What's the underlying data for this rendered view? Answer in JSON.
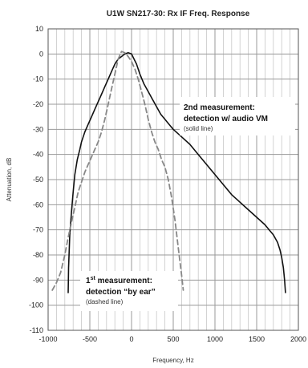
{
  "chart_data": {
    "type": "line",
    "title": "U1W SN217-30: Rx IF Freq. Response",
    "xlabel": "Frequency, Hz",
    "ylabel": "Attenuation, dB",
    "xlim": [
      -1000,
      2000
    ],
    "ylim": [
      -110,
      10
    ],
    "x_ticks": [
      -1000,
      -500,
      0,
      500,
      1000,
      1500,
      2000
    ],
    "y_ticks": [
      10,
      0,
      -10,
      -20,
      -30,
      -40,
      -50,
      -60,
      -70,
      -80,
      -90,
      -100,
      -110
    ],
    "grid": true,
    "series": [
      {
        "style": "solid",
        "color": "#111111",
        "x": [
          -760,
          -755,
          -740,
          -720,
          -700,
          -680,
          -650,
          -620,
          -600,
          -560,
          -520,
          -480,
          -440,
          -400,
          -360,
          -320,
          -280,
          -240,
          -200,
          -160,
          -120,
          -80,
          -40,
          0,
          30,
          60,
          100,
          150,
          200,
          250,
          300,
          350,
          400,
          450,
          500,
          600,
          700,
          800,
          900,
          1000,
          1100,
          1200,
          1300,
          1400,
          1500,
          1600,
          1650,
          1700,
          1750,
          1780,
          1800,
          1820,
          1835,
          1845
        ],
        "y": [
          -95,
          -85,
          -72,
          -63,
          -55,
          -48,
          -42,
          -38,
          -35,
          -31,
          -28,
          -25,
          -22,
          -19,
          -16,
          -13,
          -10,
          -7,
          -4,
          -2,
          -1,
          0,
          0.5,
          0,
          -2,
          -4,
          -8,
          -12,
          -15,
          -18,
          -21,
          -24,
          -26,
          -28,
          -30,
          -33,
          -36,
          -40,
          -44,
          -48,
          -52,
          -56,
          -59,
          -62,
          -65,
          -68,
          -70,
          -72,
          -75,
          -78,
          -81,
          -85,
          -90,
          -95
        ]
      },
      {
        "style": "dashed",
        "color": "#888888",
        "x": [
          -950,
          -900,
          -850,
          -800,
          -760,
          -720,
          -680,
          -640,
          -600,
          -560,
          -520,
          -480,
          -440,
          -400,
          -360,
          -320,
          -280,
          -240,
          -200,
          -160,
          -120,
          -80,
          -40,
          0,
          40,
          80,
          120,
          160,
          200,
          240,
          280,
          320,
          360,
          400,
          440,
          480,
          520,
          560,
          600,
          620
        ],
        "y": [
          -94,
          -91,
          -87,
          -80,
          -73,
          -67,
          -61,
          -55,
          -51,
          -47,
          -44,
          -41,
          -38,
          -35,
          -31,
          -26,
          -20,
          -14,
          -8,
          -2,
          1,
          0.5,
          -1,
          -3,
          -6,
          -10,
          -15,
          -20,
          -26,
          -31,
          -35,
          -38,
          -42,
          -45,
          -50,
          -57,
          -66,
          -77,
          -88,
          -94
        ]
      }
    ],
    "annotations": [
      {
        "lines": [
          "2nd measurement:",
          "detection w/ audio VM"
        ],
        "note": "(solid line)"
      },
      {
        "lines": [
          "1",
          "st",
          " measurement:",
          "detection “by ear”"
        ],
        "note": "(dashed line)"
      }
    ]
  }
}
